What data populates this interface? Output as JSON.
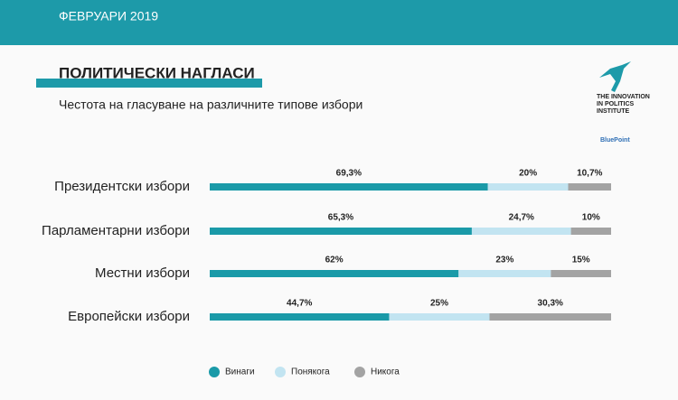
{
  "header": {
    "date": "ФЕВРУАРИ 2019"
  },
  "logo": {
    "name": "THE INNOVATION IN POLITICS INSTITUTE",
    "partner": "BluePoint"
  },
  "chart_data": {
    "type": "stacked-bar",
    "title": "ПОЛИТИЧЕСКИ НАГЛАСИ",
    "subtitle": "Честота на гласуване на различните типове избори",
    "categories": [
      "Президентски избори",
      "Парламентарни избори",
      "Местни избори",
      "Европейски избори"
    ],
    "xlim": [
      0,
      100
    ],
    "series": [
      {
        "name": "Винаги",
        "color": "#1a9aa8",
        "values": [
          69.3,
          65.3,
          62,
          44.7
        ],
        "value_labels": [
          "69,3%",
          "65,3%",
          "62%",
          "44,7%"
        ]
      },
      {
        "name": "Понякога",
        "color": "#c2e4f1",
        "values": [
          20,
          24.7,
          23,
          25
        ],
        "value_labels": [
          "20%",
          "24,7%",
          "23%",
          "25%"
        ]
      },
      {
        "name": "Никога",
        "color": "#a3a3a3",
        "values": [
          10.7,
          10,
          15,
          30.3
        ],
        "value_labels": [
          "10,7%",
          "10%",
          "15%",
          "30,3%"
        ]
      }
    ]
  }
}
